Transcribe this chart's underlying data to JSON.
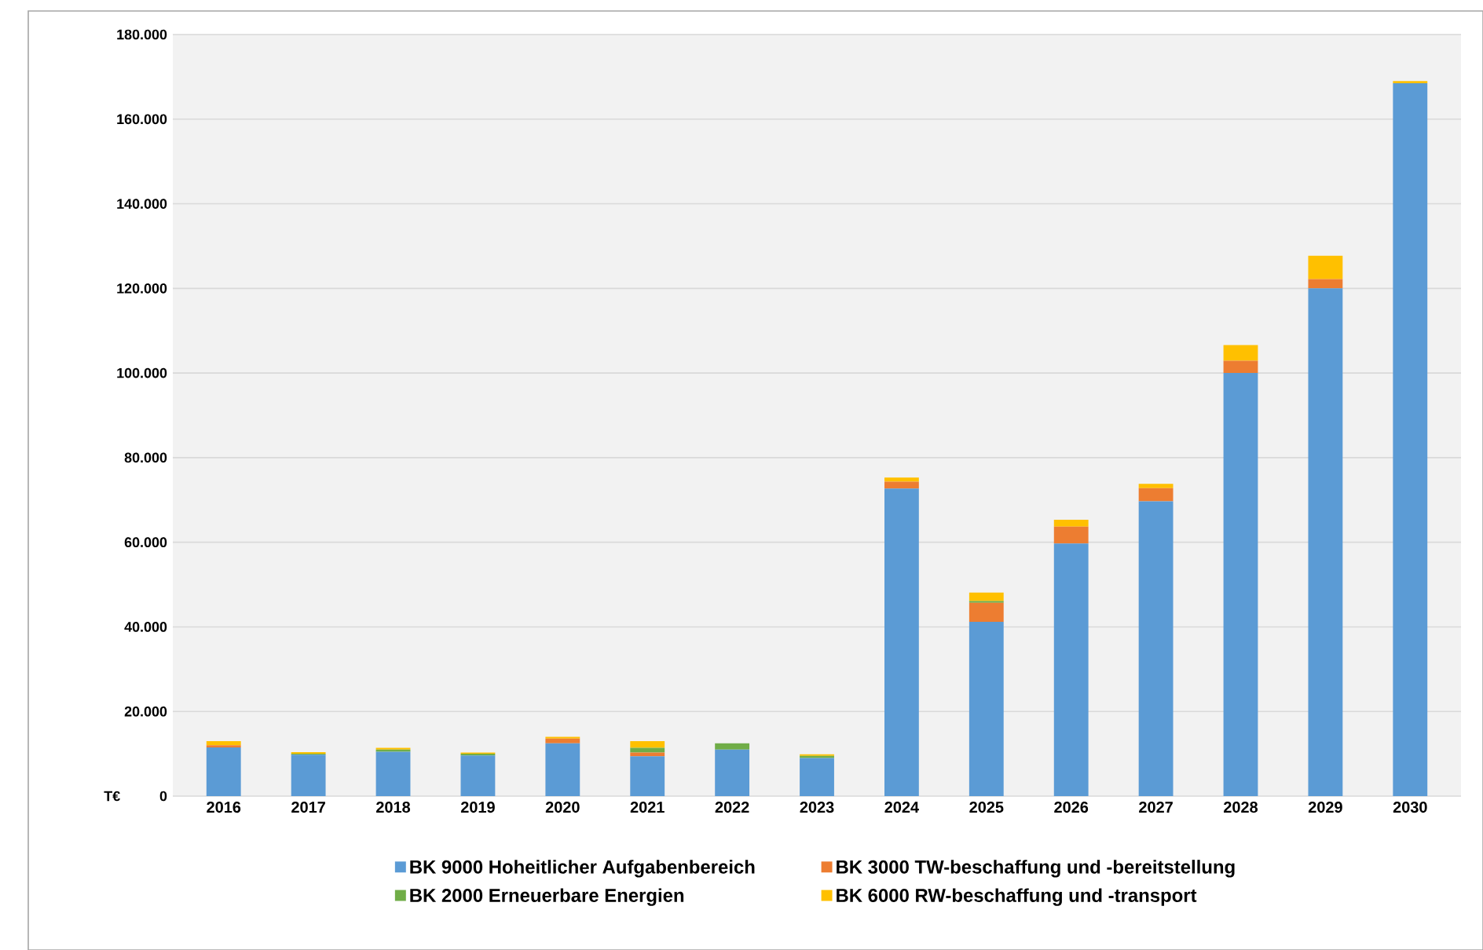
{
  "chart_data": {
    "type": "bar",
    "stacked": true,
    "ylabel": "T€",
    "categories": [
      "2016",
      "2017",
      "2018",
      "2019",
      "2020",
      "2021",
      "2022",
      "2023",
      "2024",
      "2025",
      "2026",
      "2027",
      "2028",
      "2029",
      "2030"
    ],
    "series": [
      {
        "name": "BK 9000 Hoheitlicher Aufgabenbereich",
        "color": "#5b9bd5",
        "values": [
          11500,
          9800,
          10500,
          9600,
          12500,
          9400,
          11000,
          9000,
          72700,
          41200,
          59700,
          69700,
          100000,
          120000,
          168500
        ]
      },
      {
        "name": "BK 3000 TW-beschaffung und -bereitstellung",
        "color": "#ed7d31",
        "values": [
          500,
          0,
          0,
          0,
          1100,
          900,
          0,
          0,
          1600,
          4500,
          4000,
          3100,
          2900,
          2200,
          0
        ]
      },
      {
        "name": "BK 2000 Erneuerbare Energien",
        "color": "#70ad47",
        "values": [
          0,
          200,
          500,
          400,
          0,
          1100,
          1500,
          500,
          0,
          400,
          0,
          0,
          0,
          0,
          0
        ]
      },
      {
        "name": "BK 6000 RW-beschaffung und -transport",
        "color": "#ffc000",
        "values": [
          1000,
          400,
          400,
          300,
          400,
          1600,
          0,
          400,
          1000,
          2000,
          1600,
          1000,
          3700,
          5500,
          500
        ]
      }
    ],
    "ylim": [
      0,
      180000
    ],
    "yticks": [
      0,
      {
        "value": 20000,
        "label": "20.000"
      },
      {
        "value": 40000,
        "label": "40.000"
      },
      {
        "value": 60000,
        "label": "60.000"
      },
      {
        "value": 80000,
        "label": "80.000"
      },
      {
        "value": 100000,
        "label": "100.000"
      },
      {
        "value": 120000,
        "label": "120.000"
      },
      {
        "value": 140000,
        "label": "140.000"
      },
      {
        "value": 160000,
        "label": "160.000"
      },
      {
        "value": 180000,
        "label": "180.000"
      }
    ],
    "grid": "y",
    "legend": "bottom"
  }
}
